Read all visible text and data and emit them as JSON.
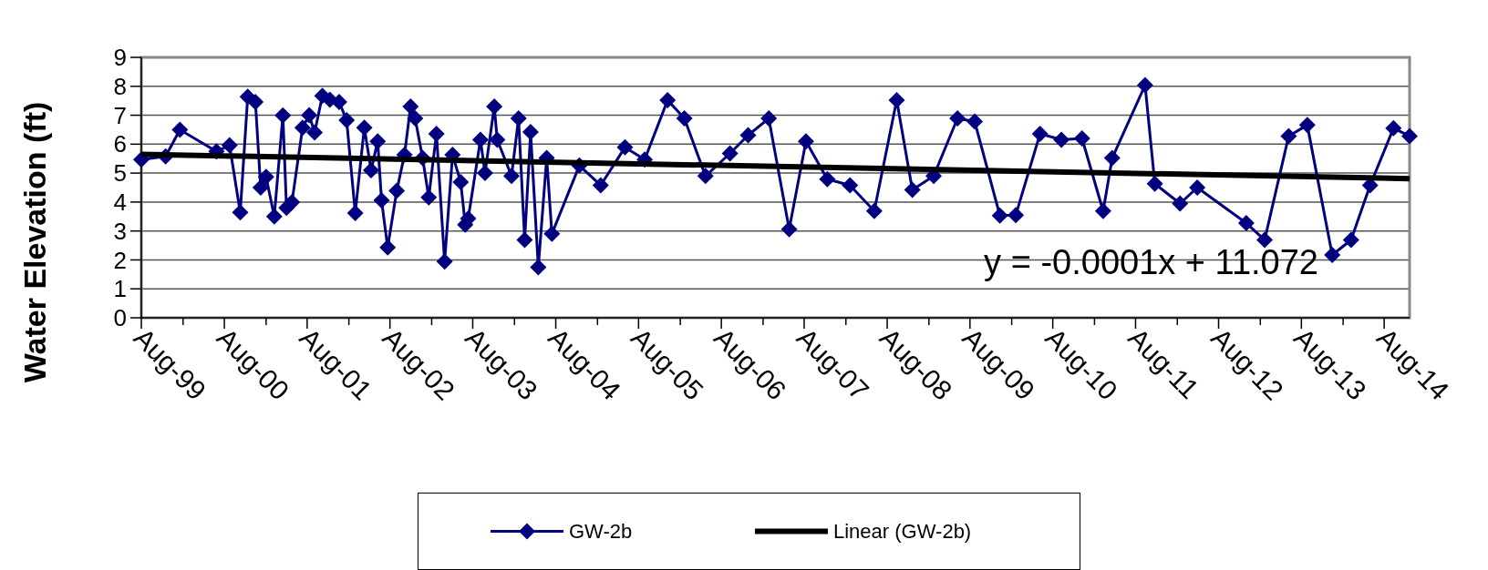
{
  "chart_data": {
    "type": "line",
    "ylabel": "Water Elevation (ft)",
    "xlim": [
      "1999-08-01",
      "2014-11-21"
    ],
    "xticks": [
      {
        "value": "1999-08-01",
        "label": "Aug-99"
      },
      {
        "value": "2000-02-01",
        "label": null
      },
      {
        "value": "2000-08-01",
        "label": "Aug-00"
      },
      {
        "value": "2001-02-01",
        "label": null
      },
      {
        "value": "2001-08-01",
        "label": "Aug-01"
      },
      {
        "value": "2002-02-01",
        "label": null
      },
      {
        "value": "2002-08-01",
        "label": "Aug-02"
      },
      {
        "value": "2003-02-01",
        "label": null
      },
      {
        "value": "2003-08-01",
        "label": "Aug-03"
      },
      {
        "value": "2004-02-01",
        "label": null
      },
      {
        "value": "2004-08-01",
        "label": "Aug-04"
      },
      {
        "value": "2005-02-01",
        "label": null
      },
      {
        "value": "2005-08-01",
        "label": "Aug-05"
      },
      {
        "value": "2006-02-01",
        "label": null
      },
      {
        "value": "2006-08-01",
        "label": "Aug-06"
      },
      {
        "value": "2007-02-01",
        "label": null
      },
      {
        "value": "2007-08-01",
        "label": "Aug-07"
      },
      {
        "value": "2008-02-01",
        "label": null
      },
      {
        "value": "2008-08-01",
        "label": "Aug-08"
      },
      {
        "value": "2009-02-01",
        "label": null
      },
      {
        "value": "2009-08-01",
        "label": "Aug-09"
      },
      {
        "value": "2010-02-01",
        "label": null
      },
      {
        "value": "2010-08-01",
        "label": "Aug-10"
      },
      {
        "value": "2011-02-01",
        "label": null
      },
      {
        "value": "2011-08-01",
        "label": "Aug-11"
      },
      {
        "value": "2012-02-01",
        "label": null
      },
      {
        "value": "2012-08-01",
        "label": "Aug-12"
      },
      {
        "value": "2013-02-01",
        "label": null
      },
      {
        "value": "2013-08-01",
        "label": "Aug-13"
      },
      {
        "value": "2014-02-01",
        "label": null
      },
      {
        "value": "2014-08-01",
        "label": "Aug-14"
      }
    ],
    "ylim": [
      0,
      9
    ],
    "yticks": [
      0,
      1,
      2,
      3,
      4,
      5,
      6,
      7,
      8,
      9
    ],
    "grid": "y",
    "legend": "bottom",
    "annotations": [
      "y = -0.0001x + 11.072"
    ],
    "series": [
      {
        "name": "GW-2b",
        "color": "#000080",
        "marker": "diamond",
        "line_style": "solid",
        "x": [
          "1999-08-01",
          "1999-11-16",
          "2000-01-18",
          "2000-06-27",
          "2000-08-24",
          "2000-10-10",
          "2000-11-12",
          "2000-12-16",
          "2001-01-08",
          "2001-02-01",
          "2001-03-09",
          "2001-04-16",
          "2001-05-02",
          "2001-05-26",
          "2001-07-12",
          "2001-08-10",
          "2001-09-03",
          "2001-10-07",
          "2001-11-09",
          "2001-12-20",
          "2002-01-22",
          "2002-03-01",
          "2002-04-10",
          "2002-05-10",
          "2002-06-08",
          "2002-06-25",
          "2002-07-22",
          "2002-08-31",
          "2002-10-04",
          "2002-10-31",
          "2002-11-20",
          "2002-12-23",
          "2003-01-19",
          "2003-02-22",
          "2003-03-30",
          "2003-05-04",
          "2003-06-09",
          "2003-06-29",
          "2003-07-12",
          "2003-09-04",
          "2003-09-24",
          "2003-11-04",
          "2003-11-17",
          "2004-01-19",
          "2004-02-19",
          "2004-03-17",
          "2004-04-12",
          "2004-05-16",
          "2004-06-22",
          "2004-07-15",
          "2004-11-13",
          "2005-02-15",
          "2005-06-02",
          "2005-08-28",
          "2005-12-07",
          "2006-02-19",
          "2006-05-23",
          "2006-09-08",
          "2006-11-27",
          "2007-02-26",
          "2007-05-27",
          "2007-08-09",
          "2007-11-11",
          "2008-02-19",
          "2008-06-05",
          "2008-09-12",
          "2008-11-20",
          "2009-02-22",
          "2009-06-07",
          "2009-08-22",
          "2009-12-11",
          "2010-02-19",
          "2010-06-06",
          "2010-09-08",
          "2010-12-08",
          "2011-03-11",
          "2011-04-20",
          "2011-09-12",
          "2011-10-25",
          "2012-02-13",
          "2012-04-29",
          "2012-12-01",
          "2013-02-20",
          "2013-06-06",
          "2013-08-27",
          "2013-12-15",
          "2014-03-08",
          "2014-05-31",
          "2014-09-11",
          "2014-11-21"
        ],
        "values": [
          5.47,
          5.58,
          6.5,
          5.75,
          5.96,
          3.64,
          7.64,
          7.46,
          4.5,
          4.87,
          3.5,
          6.99,
          3.8,
          4.0,
          6.57,
          7.0,
          6.4,
          7.67,
          7.54,
          7.46,
          6.83,
          3.62,
          6.57,
          5.1,
          6.1,
          4.06,
          2.43,
          4.39,
          5.63,
          7.3,
          6.89,
          5.52,
          4.16,
          6.36,
          1.94,
          5.63,
          4.69,
          3.22,
          3.43,
          6.15,
          5.0,
          7.3,
          6.15,
          4.9,
          6.89,
          2.69,
          6.42,
          1.75,
          5.52,
          2.9,
          5.26,
          4.58,
          5.89,
          5.47,
          7.52,
          6.89,
          4.9,
          5.68,
          6.31,
          6.89,
          3.06,
          6.1,
          4.79,
          4.58,
          3.69,
          7.52,
          4.42,
          4.9,
          6.89,
          6.78,
          3.53,
          3.55,
          6.36,
          6.15,
          6.2,
          3.69,
          5.52,
          8.04,
          4.63,
          3.95,
          4.5,
          3.27,
          2.69,
          6.28,
          6.66,
          2.17,
          2.69,
          4.58,
          6.55,
          6.28
        ]
      },
      {
        "name": "Linear (GW-2b)",
        "color": "#000000",
        "marker": "none",
        "line_style": "solid",
        "x": [
          "1999-08-01",
          "2014-11-21"
        ],
        "values": [
          5.65,
          4.81
        ]
      }
    ]
  }
}
